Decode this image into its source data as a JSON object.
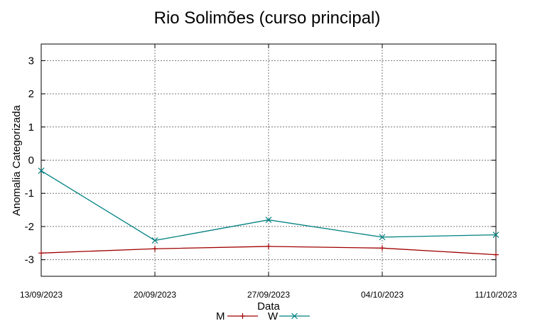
{
  "chart_data": {
    "type": "line",
    "title": "Rio Solimões (curso principal)",
    "xlabel": "Data",
    "ylabel": "Anomalia Categorizada",
    "categories": [
      "13/09/2023",
      "20/09/2023",
      "27/09/2023",
      "04/10/2023",
      "11/10/2023"
    ],
    "ylim": [
      -3.5,
      3.5
    ],
    "yticks": [
      3,
      2,
      1,
      0,
      -1,
      -2,
      -3
    ],
    "grid": true,
    "legend_position": "bottom",
    "series": [
      {
        "name": "M",
        "values": [
          -2.8,
          -2.67,
          -2.6,
          -2.65,
          -2.85
        ],
        "color": "#a00000",
        "marker": "plus"
      },
      {
        "name": "W",
        "values": [
          -0.32,
          -2.42,
          -1.8,
          -2.32,
          -2.25
        ],
        "color": "#008080",
        "marker": "cross"
      }
    ]
  }
}
